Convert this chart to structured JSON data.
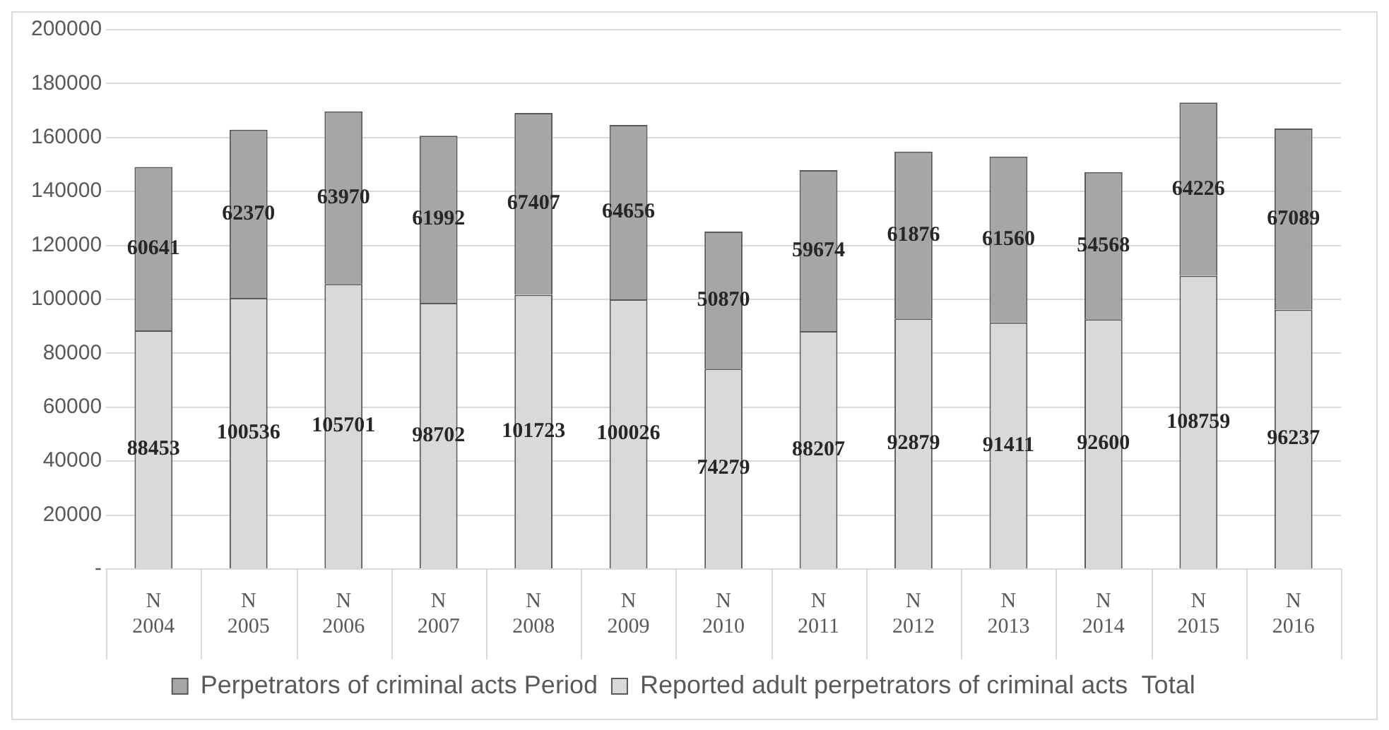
{
  "chart_data": {
    "type": "bar",
    "stacked": true,
    "categories": [
      "2004",
      "2005",
      "2006",
      "2007",
      "2008",
      "2009",
      "2010",
      "2011",
      "2012",
      "2013",
      "2014",
      "2015",
      "2016"
    ],
    "series": [
      {
        "name": "Reported adult perpetrators of criminal acts  Total",
        "color": "#d9d9d9",
        "values": [
          88453,
          100536,
          105701,
          98702,
          101723,
          100026,
          74279,
          88207,
          92879,
          91411,
          92600,
          108759,
          96237
        ]
      },
      {
        "name": "Perpetrators of criminal acts Period",
        "color": "#a6a6a6",
        "values": [
          60641,
          62370,
          63970,
          61992,
          67407,
          64656,
          50870,
          59674,
          61876,
          61560,
          54568,
          64226,
          67089
        ]
      }
    ],
    "ylim": [
      0,
      200000
    ],
    "yticks": [
      {
        "value": 0,
        "label": "-"
      },
      20000,
      40000,
      60000,
      80000,
      100000,
      120000,
      140000,
      160000,
      180000,
      200000
    ],
    "annotations": [
      "N",
      "N",
      "N",
      "N",
      "N",
      "N",
      "N",
      "N",
      "N",
      "N",
      "N",
      "N",
      "N"
    ],
    "grid": "y",
    "legend": "bottom",
    "data_labels": true
  }
}
